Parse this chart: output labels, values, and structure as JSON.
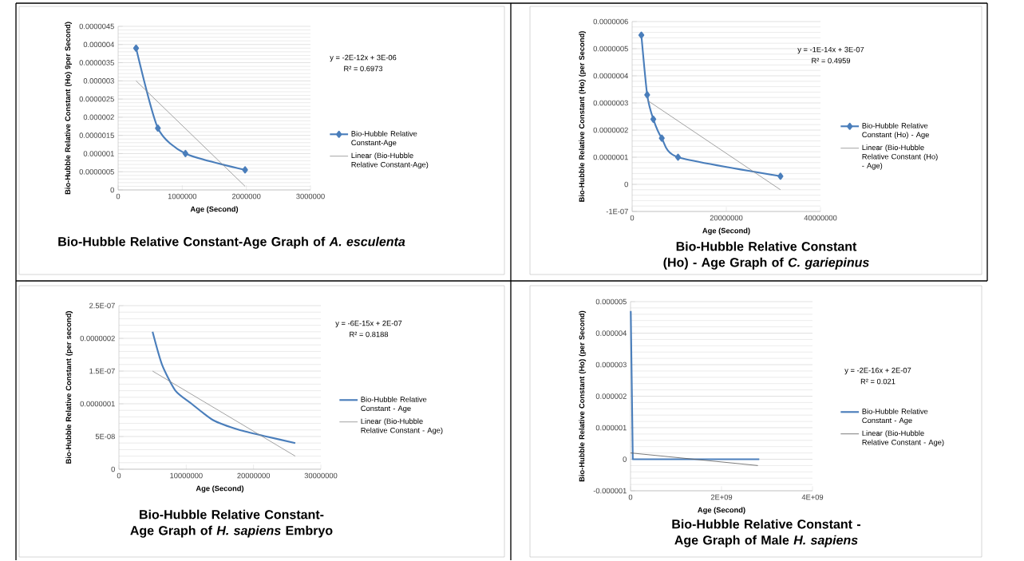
{
  "chart_data": [
    {
      "type": "line",
      "title": "Bio-Hubble Relative Constant-Age Graph of *A. esculenta*",
      "xlabel": "Age (Second)",
      "ylabel": "Bio-Hubble Relative Constant (Ho) 9per Second)",
      "annotations": [
        "y = -2E-12x + 3E-06",
        "R² = 0.6973"
      ],
      "series": [
        {
          "name": "Bio-Hubble Relative Constant-Age",
          "color": "#4a7ebb",
          "marker": "diamond",
          "x": [
            280000,
            620000,
            1050000,
            1980000
          ],
          "values": [
            3.9e-06,
            1.7e-06,
            1e-06,
            5.5e-07
          ]
        },
        {
          "name": "Linear (Bio-Hubble Relative Constant-Age)",
          "color": "#8c8c8c",
          "x": [
            280000,
            1980000
          ],
          "values": [
            3e-06,
            1e-07
          ]
        }
      ],
      "xlim": [
        0,
        3000000
      ],
      "ylim": [
        0,
        4.5e-06
      ],
      "xticks": [
        0,
        1000000,
        2000000,
        3000000
      ],
      "yticks": [
        0,
        {
          "value": 5e-07,
          "label": "0.0000005"
        },
        {
          "value": 1e-06,
          "label": "0.000001"
        },
        {
          "value": 1.5e-06,
          "label": "0.0000015"
        },
        {
          "value": 2e-06,
          "label": "0.000002"
        },
        {
          "value": 2.5e-06,
          "label": "0.0000025"
        },
        {
          "value": 3e-06,
          "label": "0.000003"
        },
        {
          "value": 3.5e-06,
          "label": "0.0000035"
        },
        {
          "value": 4e-06,
          "label": "0.000004"
        },
        {
          "value": 4.5e-06,
          "label": "0.0000045"
        }
      ],
      "grid": "y",
      "legend": "right"
    },
    {
      "type": "line",
      "title": "Bio-Hubble Relative Constant (Ho) - Age Graph of *C. gariepinus*",
      "xlabel": "Age (Second)",
      "ylabel": "Bio-Hubble Relative Constant (Ho) (per Second)",
      "annotations": [
        "y = -1E-14x + 3E-07",
        "R² = 0.4959"
      ],
      "series": [
        {
          "name": "Bio-Hubble Relative Constant (Ho) - Age",
          "color": "#4a7ebb",
          "marker": "diamond",
          "x": [
            1960000,
            3200000,
            4500000,
            6300000,
            9750000,
            31500000
          ],
          "values": [
            5.5e-07,
            3.3e-07,
            2.4e-07,
            1.7e-07,
            1e-07,
            3e-08
          ]
        },
        {
          "name": "Linear (Bio-Hubble Relative Constant (Ho) - Age)",
          "color": "#8c8c8c",
          "x": [
            3200000,
            31500000
          ],
          "values": [
            3.1e-07,
            -2e-08
          ]
        }
      ],
      "xlim": [
        0,
        40000000
      ],
      "ylim": [
        -1e-07,
        6e-07
      ],
      "xticks": [
        0,
        20000000,
        40000000
      ],
      "yticks": [
        {
          "value": -1e-07,
          "label": "-1E-07"
        },
        0,
        {
          "value": 1e-07,
          "label": "0.0000001"
        },
        {
          "value": 2e-07,
          "label": "0.0000002"
        },
        {
          "value": 3e-07,
          "label": "0.0000003"
        },
        {
          "value": 4e-07,
          "label": "0.0000004"
        },
        {
          "value": 5e-07,
          "label": "0.0000005"
        },
        {
          "value": 6e-07,
          "label": "0.0000006"
        }
      ],
      "grid": "y",
      "legend": "right"
    },
    {
      "type": "line",
      "title": "Bio-Hubble Relative Constant-Age Graph of *H. sapiens* Embryo",
      "xlabel": "Age (Second)",
      "ylabel": "Bio-Hubble Relative Constant (per second)",
      "annotations": [
        "y = -6E-15x + 2E-07",
        "R² = 0.8188"
      ],
      "series": [
        {
          "name": "Bio-Hubble Relative Constant - Age",
          "color": "#4a7ebb",
          "x": [
            5000000,
            6400000,
            8400000,
            10800000,
            14000000,
            17900000,
            21900000,
            26200000
          ],
          "values": [
            2.1e-07,
            1.6e-07,
            1.2e-07,
            1e-07,
            7.5e-08,
            6e-08,
            5e-08,
            4e-08
          ]
        },
        {
          "name": "Linear (Bio-Hubble Relative Constant - Age)",
          "color": "#8c8c8c",
          "x": [
            5000000,
            26200000
          ],
          "values": [
            1.5e-07,
            2e-08
          ]
        }
      ],
      "xlim": [
        0,
        30000000
      ],
      "ylim": [
        0,
        2.5e-07
      ],
      "xticks": [
        0,
        10000000,
        20000000,
        30000000
      ],
      "yticks": [
        0,
        {
          "value": 5e-08,
          "label": "5E-08"
        },
        {
          "value": 1e-07,
          "label": "0.0000001"
        },
        {
          "value": 1.5e-07,
          "label": "1.5E-07"
        },
        {
          "value": 2e-07,
          "label": "0.0000002"
        },
        {
          "value": 2.5e-07,
          "label": "2.5E-07"
        }
      ],
      "grid": "y",
      "legend": "right"
    },
    {
      "type": "line",
      "title": "Bio-Hubble Relative Constant - Age Graph of Male *H. sapiens*",
      "xlabel": "Age (Second)",
      "ylabel": "Bio-Hubble Relative Constant (Ho) (per Second)",
      "annotations": [
        "y = -2E-16x + 2E-07",
        "R² = 0.021"
      ],
      "series": [
        {
          "name": "Bio-Hubble Relative Constant - Age",
          "color": "#4a7ebb",
          "x": [
            5000000,
            50000000,
            2830000000
          ],
          "values": [
            4.7e-06,
            0.0,
            0.0
          ]
        },
        {
          "name": "Linear (Bio-Hubble Relative Constant - Age)",
          "color": "#5a5a5a",
          "x": [
            0,
            2800000000
          ],
          "values": [
            2e-07,
            -2e-07
          ]
        }
      ],
      "xlim": [
        0,
        4000000000
      ],
      "ylim": [
        -1e-06,
        5e-06
      ],
      "xticks": [
        0,
        {
          "value": 2000000000,
          "label": "2E+09"
        },
        {
          "value": 4000000000,
          "label": "4E+09"
        }
      ],
      "yticks": [
        {
          "value": -1e-06,
          "label": "-0.000001"
        },
        0,
        {
          "value": 1e-06,
          "label": "0.000001"
        },
        {
          "value": 2e-06,
          "label": "0.000002"
        },
        {
          "value": 3e-06,
          "label": "0.000003"
        },
        {
          "value": 4e-06,
          "label": "0.000004"
        },
        {
          "value": 5e-06,
          "label": "0.000005"
        }
      ],
      "grid": "y",
      "legend": "right"
    }
  ]
}
